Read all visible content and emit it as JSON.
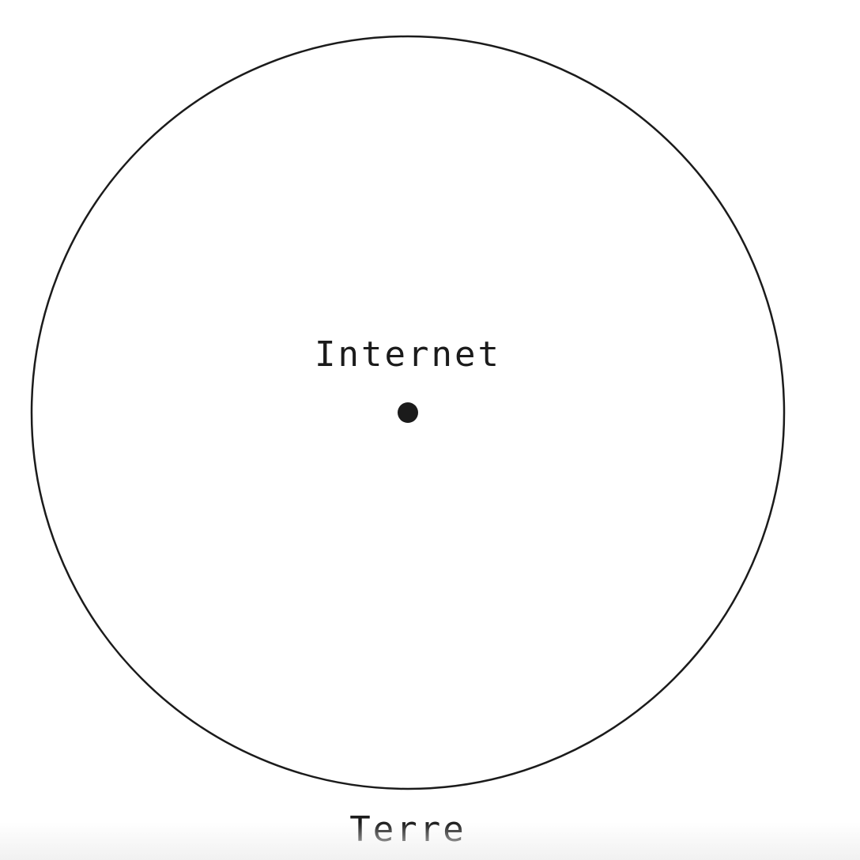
{
  "diagram": {
    "center_label": "Internet",
    "outer_label": "Terre",
    "colors": {
      "stroke": "#1b1b1b",
      "background": "#ffffff"
    }
  }
}
